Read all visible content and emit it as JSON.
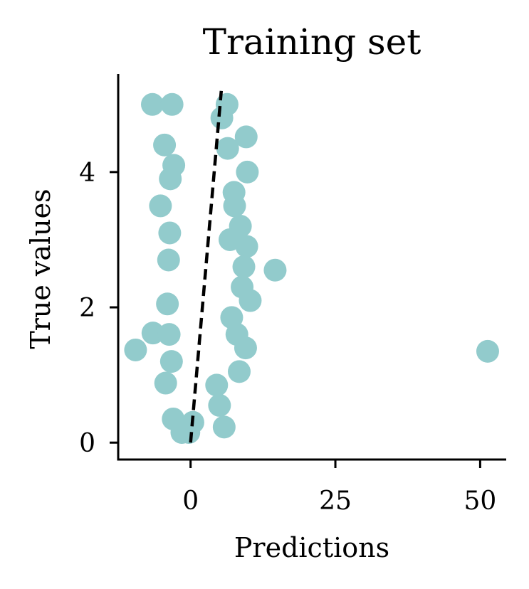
{
  "chart_data": {
    "type": "scatter",
    "title": "Training set",
    "xlabel": "Predictions",
    "ylabel": "True values",
    "xlim": [
      -12.5,
      54.5
    ],
    "ylim": [
      -0.25,
      5.45
    ],
    "xticks": [
      0,
      25,
      50
    ],
    "xtick_labels": [
      "0",
      "25",
      "50"
    ],
    "yticks": [
      0,
      2,
      4
    ],
    "ytick_labels": [
      "0",
      "2",
      "4"
    ],
    "grid": false,
    "legend": "none",
    "point_color": "#92cbcc",
    "line_color": "#000000",
    "fit_line": {
      "style": "dashed",
      "x": [
        0,
        5.3
      ],
      "y": [
        0,
        5.2
      ]
    },
    "series": [
      {
        "points": [
          [
            51.3,
            1.35
          ],
          [
            14.6,
            2.55
          ],
          [
            -9.5,
            1.37
          ],
          [
            -6.5,
            1.62
          ],
          [
            -6.6,
            5.0
          ],
          [
            9.6,
            4.52
          ],
          [
            9.8,
            4.0
          ],
          [
            -5.2,
            3.5
          ],
          [
            9.7,
            2.9
          ],
          [
            10.3,
            2.1
          ],
          [
            5.8,
            0.23
          ],
          [
            -0.3,
            0.15
          ],
          [
            -1.5,
            0.15
          ],
          [
            -3.0,
            0.35
          ],
          [
            5.0,
            0.55
          ],
          [
            -4.3,
            0.88
          ],
          [
            -4.0,
            2.05
          ],
          [
            -4.5,
            4.4
          ],
          [
            -3.2,
            5.0
          ],
          [
            6.3,
            5.0
          ],
          [
            7.5,
            3.7
          ],
          [
            7.6,
            3.5
          ],
          [
            8.6,
            3.2
          ],
          [
            9.5,
            1.4
          ],
          [
            8.4,
            1.05
          ],
          [
            8.9,
            2.3
          ],
          [
            9.2,
            2.6
          ],
          [
            -3.6,
            3.1
          ],
          [
            -3.8,
            2.7
          ],
          [
            -3.3,
            1.2
          ],
          [
            6.4,
            4.35
          ],
          [
            5.4,
            4.8
          ],
          [
            -2.9,
            4.1
          ],
          [
            -3.5,
            3.9
          ],
          [
            7.1,
            1.85
          ],
          [
            6.8,
            3.0
          ],
          [
            8.0,
            1.6
          ],
          [
            -3.7,
            1.6
          ],
          [
            4.5,
            0.85
          ],
          [
            0.4,
            0.3
          ]
        ]
      }
    ]
  }
}
